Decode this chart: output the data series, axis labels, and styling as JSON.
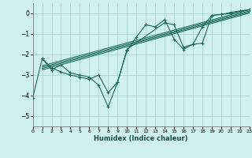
{
  "xlabel": "Humidex (Indice chaleur)",
  "bg_color": "#cff0ee",
  "grid_color": "#aad4d0",
  "line_color": "#1a6b5a",
  "xlim": [
    0,
    23
  ],
  "ylim": [
    -5.5,
    0.5
  ],
  "yticks": [
    0,
    -1,
    -2,
    -3,
    -4,
    -5
  ],
  "xticks": [
    0,
    1,
    2,
    3,
    4,
    5,
    6,
    7,
    8,
    9,
    10,
    11,
    12,
    13,
    14,
    15,
    16,
    17,
    18,
    19,
    20,
    21,
    22,
    23
  ],
  "series1": [
    [
      0,
      -4.1
    ],
    [
      1,
      -2.2
    ],
    [
      2,
      -2.75
    ],
    [
      3,
      -2.5
    ],
    [
      4,
      -2.9
    ],
    [
      5,
      -3.0
    ],
    [
      6,
      -3.1
    ],
    [
      7,
      -3.5
    ],
    [
      8,
      -4.55
    ],
    [
      9,
      -3.35
    ],
    [
      10,
      -1.8
    ],
    [
      11,
      -1.15
    ],
    [
      12,
      -0.55
    ],
    [
      13,
      -0.65
    ],
    [
      14,
      -0.3
    ],
    [
      15,
      -1.25
    ],
    [
      16,
      -1.75
    ],
    [
      17,
      -1.5
    ],
    [
      18,
      -0.65
    ],
    [
      19,
      -0.1
    ],
    [
      20,
      -0.05
    ],
    [
      21,
      0.05
    ],
    [
      22,
      0.12
    ],
    [
      23,
      0.18
    ]
  ],
  "series2": [
    [
      1,
      -2.2
    ],
    [
      2,
      -2.65
    ],
    [
      3,
      -2.85
    ],
    [
      4,
      -3.0
    ],
    [
      5,
      -3.1
    ],
    [
      6,
      -3.2
    ],
    [
      7,
      -3.0
    ],
    [
      8,
      -3.85
    ],
    [
      9,
      -3.35
    ],
    [
      10,
      -1.75
    ],
    [
      14,
      -0.45
    ],
    [
      15,
      -0.55
    ],
    [
      16,
      -1.65
    ],
    [
      17,
      -1.5
    ],
    [
      18,
      -1.45
    ],
    [
      19,
      -0.1
    ],
    [
      20,
      -0.05
    ],
    [
      21,
      0.0
    ],
    [
      22,
      0.1
    ],
    [
      23,
      0.18
    ]
  ],
  "regression_lines": [
    {
      "x0": 1,
      "y0": -2.55,
      "x1": 23,
      "y1": 0.18
    },
    {
      "x0": 1,
      "y0": -2.62,
      "x1": 23,
      "y1": 0.12
    },
    {
      "x0": 1,
      "y0": -2.68,
      "x1": 23,
      "y1": 0.07
    },
    {
      "x0": 1,
      "y0": -2.75,
      "x1": 23,
      "y1": 0.02
    }
  ]
}
